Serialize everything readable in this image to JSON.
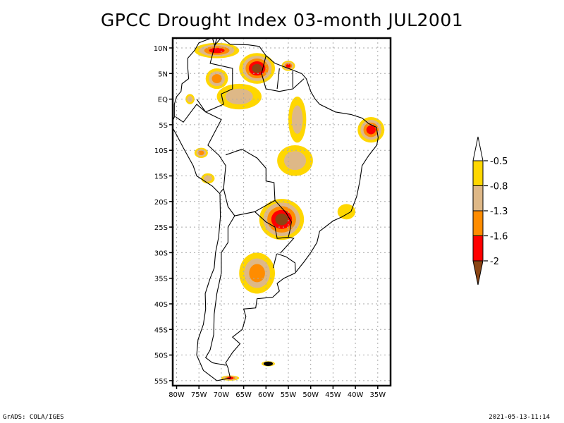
{
  "title": "GPCC Drought Index 03-month JUL2001",
  "footer": {
    "left": "GrADS: COLA/IGES",
    "right": "2021-05-13-11:14"
  },
  "colors": {
    "class_gt_-0.5": "#ffffff",
    "class_-0.5_-0.8": "#ffd700",
    "class_-0.8_-1.3": "#deb887",
    "class_-1.3_-1.6": "#ff8c00",
    "class_-1.6_-2": "#ff0000",
    "class_lt_-2": "#8b4513"
  },
  "chart_data": {
    "type": "heatmap",
    "title": "GPCC Drought Index 03-month JUL2001",
    "region": "South America",
    "xlabel": "",
    "ylabel": "",
    "lon_range": [
      -81,
      -31.5
    ],
    "lat_range": [
      -56,
      12
    ],
    "grid": true,
    "x_ticks": [
      "80W",
      "75W",
      "70W",
      "65W",
      "60W",
      "55W",
      "50W",
      "45W",
      "40W",
      "35W"
    ],
    "x_tick_values": [
      -80,
      -75,
      -70,
      -65,
      -60,
      -55,
      -50,
      -45,
      -40,
      -35
    ],
    "y_ticks": [
      "10N",
      "5N",
      "EQ",
      "5S",
      "10S",
      "15S",
      "20S",
      "25S",
      "30S",
      "35S",
      "40S",
      "45S",
      "50S",
      "55S"
    ],
    "y_tick_values": [
      10,
      5,
      0,
      -5,
      -10,
      -15,
      -20,
      -25,
      -30,
      -35,
      -40,
      -45,
      -50,
      -55
    ],
    "colorbar": {
      "placement": "right",
      "levels": [
        "-0.5",
        "-0.8",
        "-1.3",
        "-1.6",
        "-2"
      ],
      "colors": [
        "#ffffff",
        "#ffd700",
        "#deb887",
        "#ff8c00",
        "#ff0000",
        "#8b4513"
      ]
    },
    "drought_regions": [
      {
        "name": "Venezuela/Guyana north",
        "lon": -62,
        "lat": 6,
        "peak_class": "<-2",
        "extent_deg": [
          8,
          6
        ]
      },
      {
        "name": "Northern Colombia/Venezuela coast",
        "lon": -71,
        "lat": 9.5,
        "peak_class": "-1.6 to -2",
        "extent_deg": [
          10,
          3
        ]
      },
      {
        "name": "Suriname/French Guiana",
        "lon": -55,
        "lat": 6.5,
        "peak_class": "-1.6 to -2",
        "extent_deg": [
          3,
          2
        ]
      },
      {
        "name": "Colombia central",
        "lon": -71,
        "lat": 4,
        "peak_class": "-1.3 to -1.6",
        "extent_deg": [
          5,
          4
        ]
      },
      {
        "name": "Ecuador/Colombia south",
        "lon": -77,
        "lat": 0,
        "peak_class": "-0.8 to -1.3",
        "extent_deg": [
          2,
          2
        ]
      },
      {
        "name": "Amazon NW",
        "lon": -66,
        "lat": 0.5,
        "peak_class": "-0.8 to -1.3",
        "extent_deg": [
          10,
          5
        ]
      },
      {
        "name": "Para central",
        "lon": -53,
        "lat": -4,
        "peak_class": "-0.8 to -1.3",
        "extent_deg": [
          4,
          9
        ]
      },
      {
        "name": "Peru central",
        "lon": -74.5,
        "lat": -10.5,
        "peak_class": "-1.3 to -1.6",
        "extent_deg": [
          3,
          2
        ]
      },
      {
        "name": "Peru south coast",
        "lon": -73,
        "lat": -15.5,
        "peak_class": "-0.8 to -1.3",
        "extent_deg": [
          3,
          2
        ]
      },
      {
        "name": "Mato Grosso",
        "lon": -53.5,
        "lat": -12,
        "peak_class": "-0.8 to -1.3",
        "extent_deg": [
          8,
          6
        ]
      },
      {
        "name": "Paraguay/Parana",
        "lon": -56.5,
        "lat": -23.5,
        "peak_class": "<-2",
        "extent_deg": [
          10,
          8
        ]
      },
      {
        "name": "Argentina central",
        "lon": -62,
        "lat": -34,
        "peak_class": "-1.3 to -1.6",
        "extent_deg": [
          8,
          8
        ]
      },
      {
        "name": "NE Brazil (Rio Grande do Norte)",
        "lon": -36.5,
        "lat": -6,
        "peak_class": "-1.6 to -2",
        "extent_deg": [
          6,
          5
        ]
      },
      {
        "name": "SE Brazil coast",
        "lon": -42,
        "lat": -22,
        "peak_class": "-0.5 to -0.8",
        "extent_deg": [
          4,
          3
        ]
      },
      {
        "name": "Falkland Islands",
        "lon": -59.5,
        "lat": -51.7,
        "peak_class": "-1.6 to -2",
        "extent_deg": [
          3,
          1
        ]
      },
      {
        "name": "Tierra del Fuego",
        "lon": -68,
        "lat": -54.5,
        "peak_class": "-1.6 to -2",
        "extent_deg": [
          4,
          1
        ]
      }
    ]
  }
}
